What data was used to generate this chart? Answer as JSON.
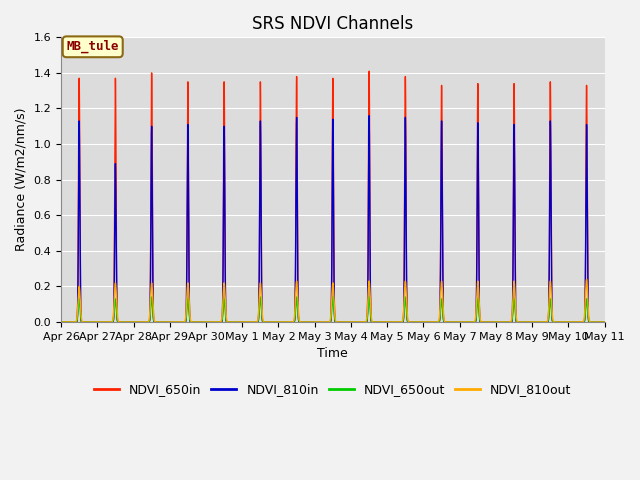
{
  "title": "SRS NDVI Channels",
  "xlabel": "Time",
  "ylabel": "Radiance (W/m2/nm/s)",
  "annotation": "MB_tule",
  "annotation_color": "#8B0000",
  "annotation_bg": "#FFFFCC",
  "annotation_border": "#8B6914",
  "ylim": [
    0,
    1.6
  ],
  "yticks": [
    0.0,
    0.2,
    0.4,
    0.6,
    0.8,
    1.0,
    1.2,
    1.4,
    1.6
  ],
  "x_labels": [
    "Apr 26",
    "Apr 27",
    "Apr 28",
    "Apr 29",
    "Apr 30",
    "May 1",
    "May 2",
    "May 3",
    "May 4",
    "May 5",
    "May 6",
    "May 7",
    "May 8",
    "May 9",
    "May 10",
    "May 11"
  ],
  "num_days": 15,
  "colors": {
    "NDVI_650in": "#FF2200",
    "NDVI_810in": "#0000CC",
    "NDVI_650out": "#00CC00",
    "NDVI_810out": "#FFAA00"
  },
  "peak_heights_650in": [
    1.37,
    1.37,
    1.4,
    1.35,
    1.35,
    1.35,
    1.38,
    1.37,
    1.41,
    1.38,
    1.33,
    1.34,
    1.34,
    1.35,
    1.33
  ],
  "peak_heights_810in": [
    1.13,
    0.89,
    1.1,
    1.11,
    1.1,
    1.13,
    1.15,
    1.14,
    1.16,
    1.15,
    1.13,
    1.12,
    1.11,
    1.13,
    1.11
  ],
  "peak_heights_650out": [
    0.13,
    0.13,
    0.14,
    0.13,
    0.13,
    0.14,
    0.14,
    0.14,
    0.14,
    0.14,
    0.13,
    0.13,
    0.13,
    0.13,
    0.13
  ],
  "peak_heights_810out": [
    0.2,
    0.22,
    0.22,
    0.22,
    0.22,
    0.22,
    0.23,
    0.22,
    0.23,
    0.23,
    0.23,
    0.23,
    0.23,
    0.23,
    0.24
  ],
  "background_color": "#DCDCDC",
  "grid_color": "#FFFFFF",
  "title_fontsize": 12,
  "tick_fontsize": 8,
  "label_fontsize": 9,
  "legend_fontsize": 9
}
